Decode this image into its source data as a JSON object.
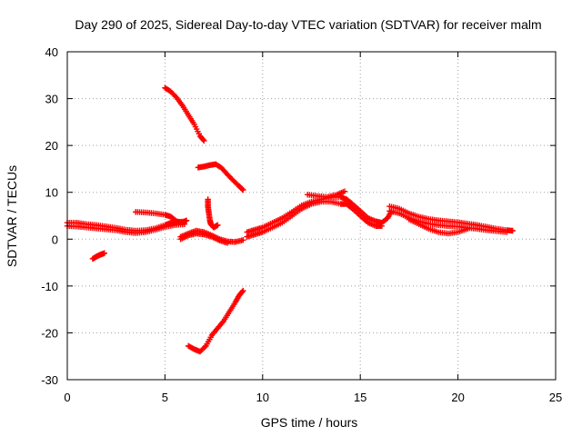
{
  "chart_data": {
    "type": "scatter",
    "title": "Day 290 of 2025, Sidereal Day-to-day VTEC variation (SDTVAR) for receiver malm",
    "xlabel": "GPS time / hours",
    "ylabel": "SDTVAR / TECUs",
    "xlim": [
      0,
      25
    ],
    "ylim": [
      -30,
      40
    ],
    "xticks": [
      0,
      5,
      10,
      15,
      20,
      25
    ],
    "yticks": [
      -30,
      -20,
      -10,
      0,
      10,
      20,
      30,
      40
    ],
    "xtick_labels": [
      "0",
      "5",
      "10",
      "15",
      "20",
      "25"
    ],
    "ytick_labels": [
      "-30",
      "-20",
      "-10",
      "0",
      "10",
      "20",
      "30",
      "40"
    ],
    "grid": true,
    "marker": "plus",
    "color": "#ff0000",
    "series": [
      {
        "name": "arc-main-low",
        "x": [
          0.0,
          0.5,
          1.0,
          1.5,
          2.0,
          2.5,
          3.0,
          3.5,
          4.0,
          4.5,
          5.0,
          5.3,
          5.6,
          6.0
        ],
        "y": [
          3.5,
          3.5,
          3.2,
          3.0,
          2.7,
          2.4,
          2.0,
          1.8,
          1.9,
          2.3,
          3.0,
          3.5,
          3.6,
          3.8
        ]
      },
      {
        "name": "arc-main-low-b",
        "x": [
          0.0,
          0.5,
          1.0,
          1.5,
          2.0,
          2.5,
          3.0,
          3.5,
          4.0,
          4.5,
          5.0,
          5.5,
          6.0
        ],
        "y": [
          2.8,
          2.7,
          2.5,
          2.3,
          2.1,
          1.9,
          1.5,
          1.3,
          1.5,
          2.0,
          2.6,
          3.0,
          3.2
        ]
      },
      {
        "name": "arc-early-neg",
        "x": [
          1.3,
          1.5,
          1.7,
          1.9
        ],
        "y": [
          -4.2,
          -3.7,
          -3.3,
          -3.0
        ]
      },
      {
        "name": "arc-mid-pos",
        "x": [
          3.5,
          4.0,
          4.5,
          5.0,
          5.3,
          5.6,
          5.9,
          6.1
        ],
        "y": [
          5.8,
          5.7,
          5.5,
          5.2,
          4.8,
          3.8,
          3.5,
          4.0
        ]
      },
      {
        "name": "arc-high-desc",
        "x": [
          5.0,
          5.3,
          5.6,
          5.9,
          6.2,
          6.5,
          6.8,
          7.0
        ],
        "y": [
          32.3,
          31.5,
          30.2,
          28.5,
          26.5,
          24.5,
          22.0,
          21.0
        ]
      },
      {
        "name": "arc-mid-15",
        "x": [
          6.7,
          7.0,
          7.3,
          7.6,
          7.9,
          8.2,
          8.5,
          8.8,
          9.0
        ],
        "y": [
          15.3,
          15.5,
          15.8,
          16.0,
          15.2,
          13.8,
          12.5,
          11.3,
          10.5
        ]
      },
      {
        "name": "arc-vertical",
        "x": [
          7.2,
          7.2,
          7.25,
          7.3,
          7.35,
          7.5,
          7.7
        ],
        "y": [
          8.5,
          7.0,
          5.5,
          4.0,
          3.2,
          2.5,
          3.0
        ]
      },
      {
        "name": "arc-low-neg",
        "x": [
          6.2,
          6.5,
          6.8,
          7.1,
          7.4,
          7.7,
          8.0,
          8.3,
          8.6,
          8.8,
          9.0
        ],
        "y": [
          -22.8,
          -23.5,
          -24.0,
          -22.8,
          -20.5,
          -19.0,
          -17.5,
          -15.5,
          -13.5,
          -12.0,
          -11.0
        ]
      },
      {
        "name": "arc-dip",
        "x": [
          5.8,
          6.2,
          6.6,
          7.0,
          7.4,
          7.8,
          8.2,
          8.6,
          9.0
        ],
        "y": [
          0.5,
          1.2,
          1.8,
          1.5,
          0.8,
          0.0,
          -0.5,
          -0.6,
          -0.2
        ]
      },
      {
        "name": "arc-dip-b",
        "x": [
          5.8,
          6.2,
          6.6,
          7.0,
          7.4,
          7.8,
          8.2
        ],
        "y": [
          0.0,
          0.8,
          1.2,
          1.0,
          0.5,
          -0.3,
          -0.8
        ]
      },
      {
        "name": "arc-rise",
        "x": [
          9.2,
          9.6,
          10.0,
          10.5,
          11.0,
          11.5,
          12.0,
          12.5,
          13.0,
          13.5,
          14.0,
          14.3,
          14.6,
          15.0,
          15.4,
          15.8,
          16.1,
          16.4,
          16.6
        ],
        "y": [
          1.5,
          2.0,
          2.5,
          3.5,
          4.5,
          5.8,
          7.2,
          8.0,
          8.5,
          9.0,
          9.0,
          8.5,
          7.5,
          6.0,
          4.5,
          3.8,
          3.5,
          4.5,
          6.0
        ]
      },
      {
        "name": "arc-rise-b",
        "x": [
          9.2,
          9.6,
          10.0,
          10.5,
          11.0,
          11.5,
          12.0,
          12.5,
          13.0,
          13.5,
          14.0,
          14.3,
          14.6,
          15.0,
          15.4,
          15.8,
          16.1
        ],
        "y": [
          0.5,
          1.0,
          1.5,
          2.5,
          3.5,
          5.0,
          6.5,
          7.5,
          8.0,
          8.0,
          7.5,
          7.5,
          6.5,
          5.0,
          3.5,
          2.8,
          2.8
        ]
      },
      {
        "name": "arc-rise-c",
        "x": [
          12.3,
          12.8,
          13.3,
          13.8,
          14.2
        ],
        "y": [
          9.5,
          9.2,
          9.0,
          9.5,
          10.2
        ]
      },
      {
        "name": "arc-late",
        "x": [
          16.5,
          17.0,
          17.5,
          18.0,
          18.5,
          19.0,
          19.5,
          20.0,
          20.5,
          21.0,
          21.5,
          22.0,
          22.5,
          22.8
        ],
        "y": [
          7.0,
          6.5,
          5.5,
          4.8,
          4.3,
          4.0,
          3.8,
          3.6,
          3.3,
          3.0,
          2.6,
          2.2,
          1.9,
          1.8
        ]
      },
      {
        "name": "arc-late-b",
        "x": [
          16.5,
          17.0,
          17.5,
          18.0,
          18.5,
          19.0,
          19.5,
          20.0,
          20.5,
          21.0,
          21.5,
          22.0,
          22.5
        ],
        "y": [
          6.0,
          5.5,
          4.5,
          3.8,
          3.3,
          3.0,
          2.8,
          2.7,
          2.4,
          2.2,
          1.9,
          1.7,
          1.5
        ]
      },
      {
        "name": "arc-late-dip",
        "x": [
          17.5,
          18.0,
          18.5,
          19.0,
          19.5,
          20.0,
          20.5
        ],
        "y": [
          4.2,
          3.2,
          2.2,
          1.5,
          1.2,
          1.5,
          2.2
        ]
      }
    ]
  }
}
